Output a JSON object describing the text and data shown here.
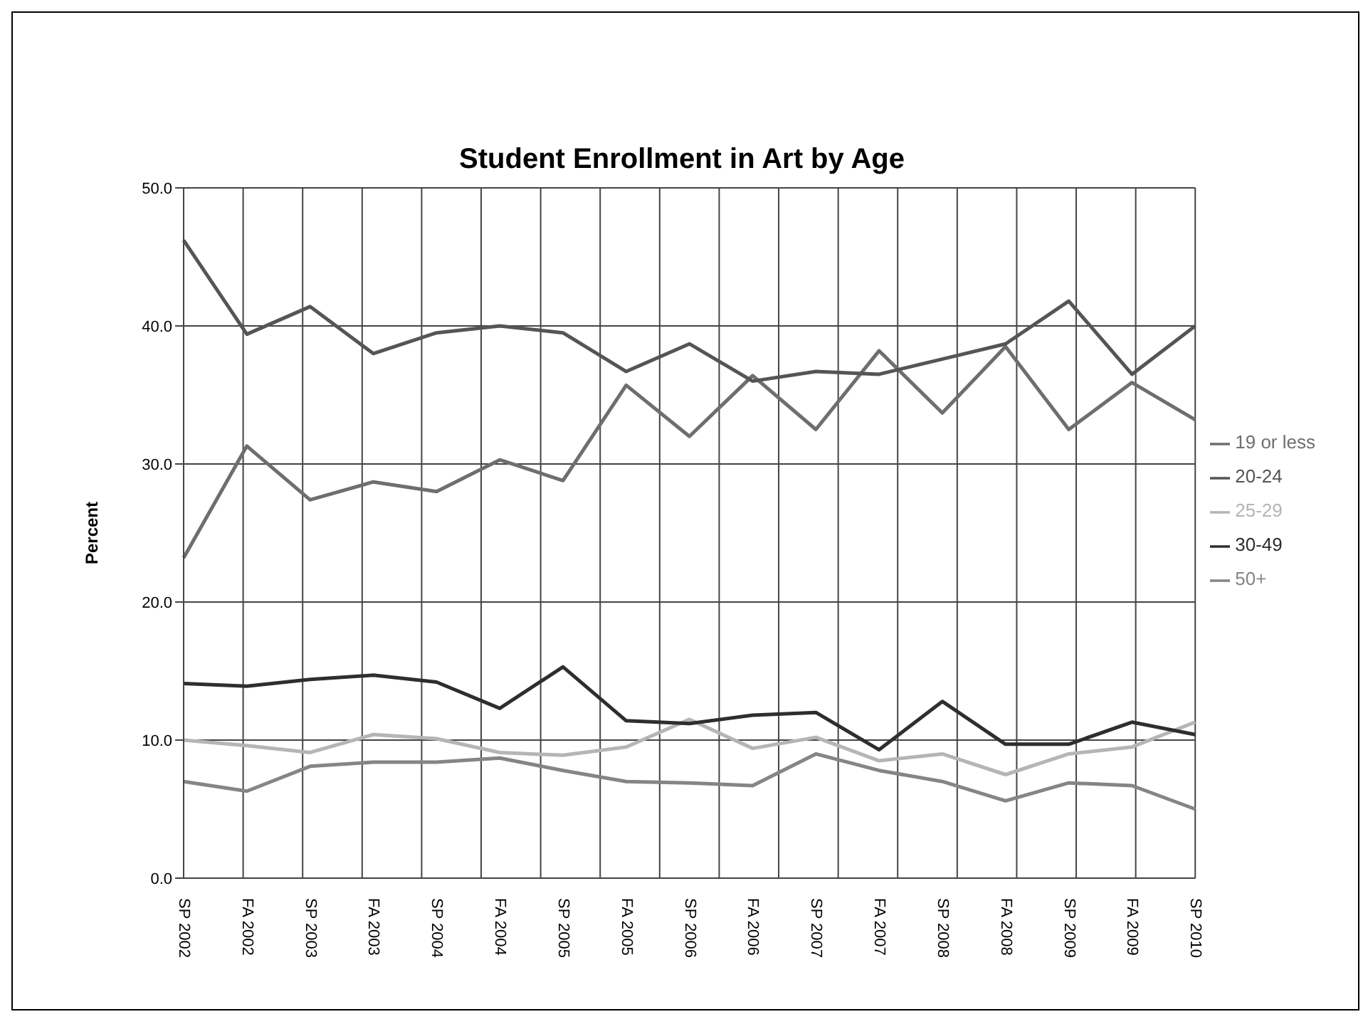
{
  "chart_data": {
    "type": "line",
    "title": "Student Enrollment in Art by Age",
    "ylabel": "Percent",
    "categories": [
      "SP 2002",
      "FA 2002",
      "SP 2003",
      "FA 2003",
      "SP 2004",
      "FA 2004",
      "SP 2005",
      "FA 2005",
      "SP 2006",
      "FA 2006",
      "SP 2007",
      "FA 2007",
      "SP 2008",
      "FA 2008",
      "SP 2009",
      "FA 2009",
      "SP 2010"
    ],
    "series": [
      {
        "name": "19 or less",
        "color": "#6e6e6e",
        "values": [
          23.2,
          31.3,
          27.4,
          28.7,
          28.0,
          30.3,
          28.8,
          35.7,
          32.0,
          36.4,
          32.5,
          38.2,
          33.7,
          38.5,
          32.5,
          35.9,
          33.2
        ]
      },
      {
        "name": "20-24",
        "color": "#555555",
        "values": [
          46.2,
          39.4,
          41.4,
          38.0,
          39.5,
          40.0,
          39.5,
          36.7,
          38.7,
          36.0,
          36.7,
          36.5,
          37.6,
          38.7,
          41.8,
          36.5,
          40.0
        ]
      },
      {
        "name": "25-29",
        "color": "#b5b5b5",
        "values": [
          10.0,
          9.6,
          9.1,
          10.4,
          10.1,
          9.1,
          8.9,
          9.5,
          11.5,
          9.4,
          10.2,
          8.5,
          9.0,
          7.5,
          9.0,
          9.5,
          11.3
        ]
      },
      {
        "name": "30-49",
        "color": "#2e2e2e",
        "values": [
          14.1,
          13.9,
          14.4,
          14.7,
          14.2,
          12.3,
          15.3,
          11.4,
          11.2,
          11.8,
          12.0,
          9.3,
          12.8,
          9.7,
          9.7,
          11.3,
          10.4
        ]
      },
      {
        "name": "50+",
        "color": "#858585",
        "values": [
          7.0,
          6.3,
          8.1,
          8.4,
          8.4,
          8.7,
          7.8,
          7.0,
          6.9,
          6.7,
          9.0,
          7.8,
          7.0,
          5.6,
          6.9,
          6.7,
          5.0
        ]
      }
    ],
    "ylim": [
      0,
      50
    ],
    "yticks": [
      {
        "value": 0,
        "label": "0.0"
      },
      {
        "value": 10,
        "label": "10.0"
      },
      {
        "value": 20,
        "label": "20.0"
      },
      {
        "value": 30,
        "label": "30.0"
      },
      {
        "value": 40,
        "label": "40.0"
      },
      {
        "value": 50,
        "label": "50.0"
      }
    ],
    "grid": true,
    "legend": "right",
    "marker": "none",
    "line_style": "solid"
  }
}
